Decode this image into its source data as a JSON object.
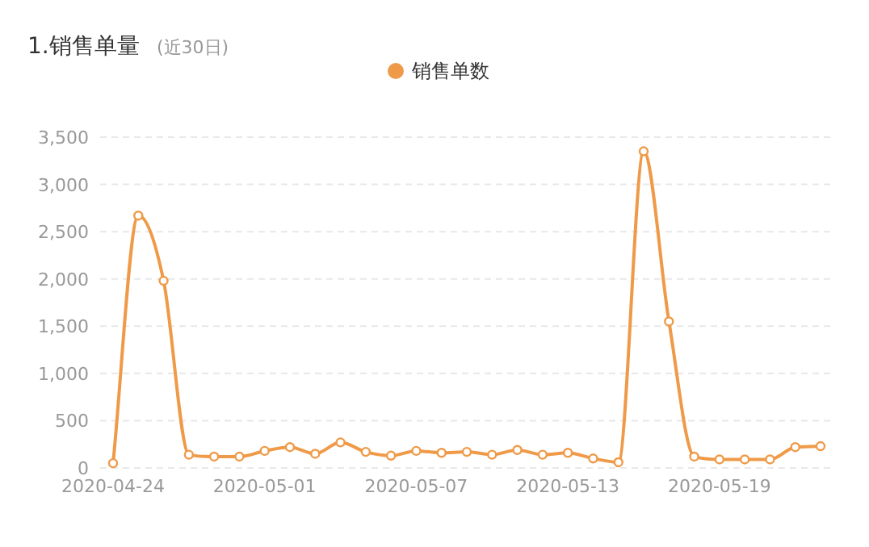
{
  "chart_data": {
    "type": "line",
    "title": "1.销售单量",
    "subtitle": "(近30日)",
    "categories": [
      "2020-04-24",
      null,
      null,
      null,
      null,
      null,
      "2020-05-01",
      null,
      null,
      null,
      null,
      null,
      "2020-05-07",
      null,
      null,
      null,
      null,
      null,
      "2020-05-13",
      null,
      null,
      null,
      null,
      null,
      "2020-05-19",
      null,
      null,
      null,
      null
    ],
    "series": [
      {
        "name": "销售单数",
        "color": "#ef9a48",
        "values": [
          50,
          2670,
          1980,
          140,
          120,
          120,
          180,
          220,
          150,
          270,
          170,
          130,
          180,
          160,
          170,
          140,
          190,
          140,
          160,
          100,
          60,
          3350,
          1550,
          120,
          90,
          90,
          90,
          220,
          230
        ]
      }
    ],
    "ylim": [
      0,
      3500
    ],
    "yticks": [
      {
        "value": 0,
        "label": "0"
      },
      {
        "value": 500,
        "label": "500"
      },
      {
        "value": 1000,
        "label": "1,000"
      },
      {
        "value": 1500,
        "label": "1,500"
      },
      {
        "value": 2000,
        "label": "2,000"
      },
      {
        "value": 2500,
        "label": "2,500"
      },
      {
        "value": 3000,
        "label": "3,000"
      },
      {
        "value": 3500,
        "label": "3,500"
      }
    ],
    "grid": "y",
    "legend": "top",
    "marker": "circle",
    "line_style": "solid"
  }
}
